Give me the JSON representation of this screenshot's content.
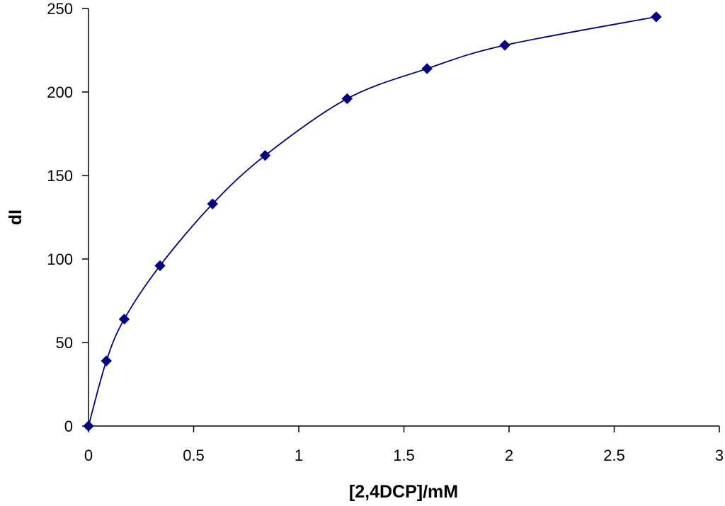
{
  "chart_data": {
    "type": "scatter",
    "title": "",
    "xlabel": "[2,4DCP]/mM",
    "ylabel": "dI",
    "xlim": [
      0,
      3
    ],
    "ylim": [
      0,
      250
    ],
    "x_ticks": [
      0,
      0.5,
      1,
      1.5,
      2,
      2.5,
      3
    ],
    "x_tick_labels": [
      "0",
      "0.5",
      "1",
      "1.5",
      "2",
      "2.5",
      "3"
    ],
    "y_ticks": [
      0,
      50,
      100,
      150,
      200,
      250
    ],
    "y_tick_labels": [
      "0",
      "50",
      "100",
      "150",
      "200",
      "250"
    ],
    "grid": false,
    "smooth_line": true,
    "series": [
      {
        "x": [
          0,
          0.085,
          0.17,
          0.34,
          0.59,
          0.84,
          1.23,
          1.61,
          1.98,
          2.7
        ],
        "y": [
          0,
          39,
          64,
          96,
          133,
          162,
          196,
          214,
          228,
          245
        ],
        "color": "#000080",
        "marker": "diamond"
      }
    ]
  }
}
